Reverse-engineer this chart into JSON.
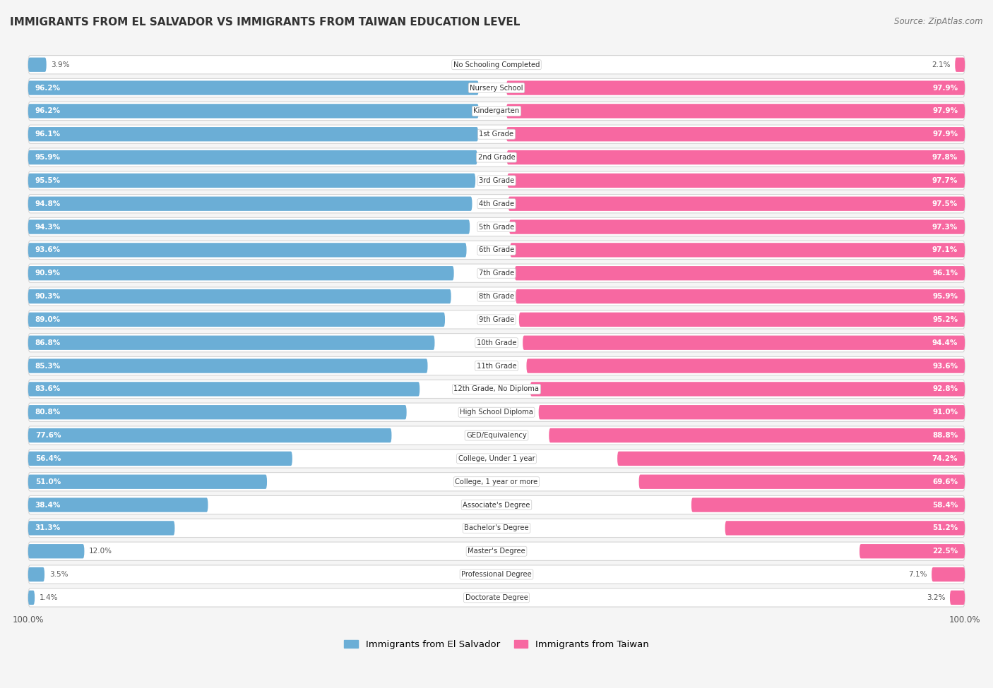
{
  "title": "IMMIGRANTS FROM EL SALVADOR VS IMMIGRANTS FROM TAIWAN EDUCATION LEVEL",
  "source": "Source: ZipAtlas.com",
  "categories": [
    "No Schooling Completed",
    "Nursery School",
    "Kindergarten",
    "1st Grade",
    "2nd Grade",
    "3rd Grade",
    "4th Grade",
    "5th Grade",
    "6th Grade",
    "7th Grade",
    "8th Grade",
    "9th Grade",
    "10th Grade",
    "11th Grade",
    "12th Grade, No Diploma",
    "High School Diploma",
    "GED/Equivalency",
    "College, Under 1 year",
    "College, 1 year or more",
    "Associate's Degree",
    "Bachelor's Degree",
    "Master's Degree",
    "Professional Degree",
    "Doctorate Degree"
  ],
  "el_salvador": [
    3.9,
    96.2,
    96.2,
    96.1,
    95.9,
    95.5,
    94.8,
    94.3,
    93.6,
    90.9,
    90.3,
    89.0,
    86.8,
    85.3,
    83.6,
    80.8,
    77.6,
    56.4,
    51.0,
    38.4,
    31.3,
    12.0,
    3.5,
    1.4
  ],
  "taiwan": [
    2.1,
    97.9,
    97.9,
    97.9,
    97.8,
    97.7,
    97.5,
    97.3,
    97.1,
    96.1,
    95.9,
    95.2,
    94.4,
    93.6,
    92.8,
    91.0,
    88.8,
    74.2,
    69.6,
    58.4,
    51.2,
    22.5,
    7.1,
    3.2
  ],
  "color_salvador": "#6BAED6",
  "color_taiwan": "#F768A1",
  "row_bg_color": "#EBEBEB",
  "row_border_color": "#D5D5D5",
  "background_color": "#F5F5F5",
  "legend_label_salvador": "Immigrants from El Salvador",
  "legend_label_taiwan": "Immigrants from Taiwan",
  "axis_label_left": "100.0%",
  "axis_label_right": "100.0%",
  "white_text_threshold": 15.0
}
